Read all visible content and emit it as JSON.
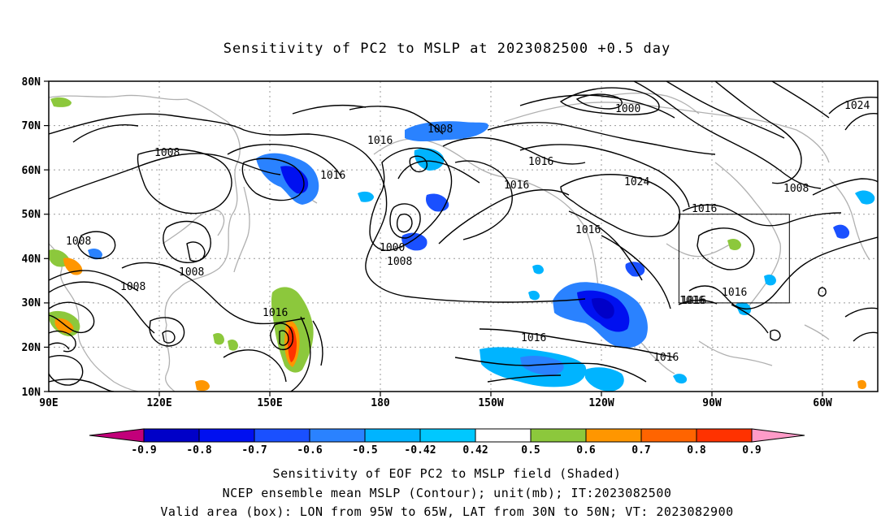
{
  "title": "Sensitivity of PC2 to MSLP at 2023082500 +0.5 day",
  "axes": {
    "lat_ticks": [
      "10N",
      "20N",
      "30N",
      "40N",
      "50N",
      "60N",
      "70N",
      "80N"
    ],
    "lon_ticks": [
      "90E",
      "120E",
      "150E",
      "180",
      "150W",
      "120W",
      "90W",
      "60W"
    ]
  },
  "contour_labels": [
    "1000",
    "1008",
    "1016",
    "1024",
    "1008",
    "1016",
    "1016",
    "1016",
    "1008",
    "1016",
    "1024",
    "1016",
    "1016",
    "1016",
    "1000",
    "1008",
    "1008",
    "1008",
    "1008",
    "1016",
    "1016",
    "1016",
    "1016"
  ],
  "colorbar": {
    "tick_labels": [
      "-0.9",
      "-0.8",
      "-0.7",
      "-0.6",
      "-0.5",
      "-0.42",
      "0.42",
      "0.5",
      "0.6",
      "0.7",
      "0.8",
      "0.9"
    ],
    "colors": [
      "#c2007a",
      "#0000c8",
      "#0010f0",
      "#1a50ff",
      "#2a82ff",
      "#00b4ff",
      "#00c8ff",
      "#ffffff",
      "#8cc83c",
      "#ff9600",
      "#ff6400",
      "#ff3200",
      "#ff0000",
      "#ff9bc8"
    ]
  },
  "valid_box": {
    "lon_from": "95W",
    "lon_to": "65W",
    "lat_from": "30N",
    "lat_to": "50N"
  },
  "captions": {
    "line1": "Sensitivity of EOF PC2 to MSLP field (Shaded)",
    "line2": "NCEP ensemble mean MSLP (Contour); unit(mb); IT:2023082500",
    "line3": "Valid area (box): LON from 95W to 65W, LAT from 30N to 50N; VT: 2023082900"
  }
}
